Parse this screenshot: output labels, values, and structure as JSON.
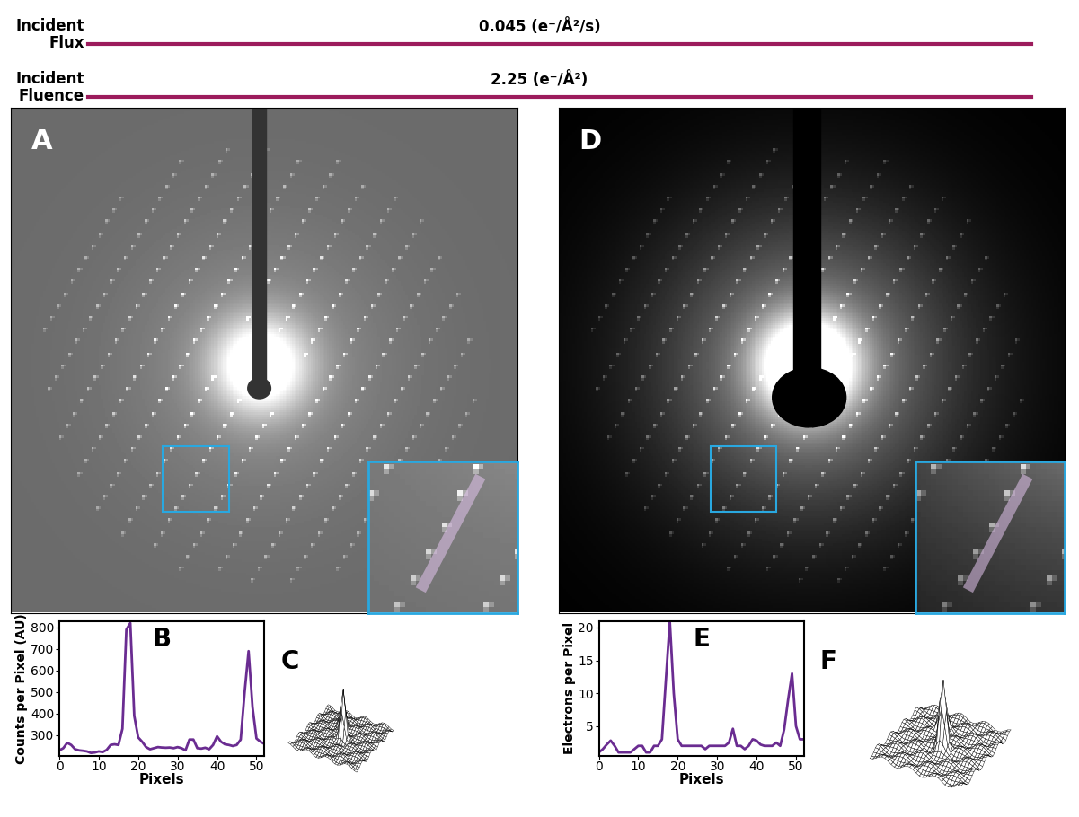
{
  "header": {
    "rows": [
      {
        "label": [
          "Incident",
          "Flux"
        ],
        "value": "0.045 (e⁻/Å²/s)"
      },
      {
        "label": [
          "Incident",
          "Fluence"
        ],
        "value": "2.25 (e⁻/Å²)"
      }
    ]
  },
  "images": [
    {
      "label": "A"
    },
    {
      "label": "D"
    }
  ],
  "surfaces": [
    {
      "label": "C"
    },
    {
      "label": "F"
    }
  ],
  "chart_data": [
    {
      "type": "line",
      "label": "B",
      "color": "#6a2c91",
      "xlabel": "Pixels",
      "ylabel": "Counts per Pixel (AU)",
      "x": [
        0,
        1,
        2,
        3,
        4,
        5,
        6,
        7,
        8,
        9,
        10,
        11,
        12,
        13,
        14,
        15,
        16,
        17,
        18,
        19,
        20,
        21,
        22,
        23,
        24,
        25,
        26,
        27,
        28,
        29,
        30,
        31,
        32,
        33,
        34,
        35,
        36,
        37,
        38,
        39,
        40,
        41,
        42,
        43,
        44,
        45,
        46,
        47,
        48,
        49,
        50,
        51,
        52
      ],
      "values": [
        230,
        240,
        265,
        255,
        235,
        230,
        228,
        225,
        218,
        220,
        225,
        222,
        232,
        255,
        258,
        255,
        330,
        790,
        820,
        390,
        290,
        270,
        245,
        235,
        240,
        245,
        243,
        242,
        243,
        240,
        245,
        240,
        230,
        280,
        280,
        240,
        238,
        242,
        235,
        255,
        295,
        270,
        258,
        255,
        250,
        255,
        280,
        500,
        690,
        430,
        285,
        270,
        260
      ],
      "xlim": [
        0,
        52
      ],
      "ylim": [
        205,
        830
      ],
      "xticks": [
        0,
        10,
        20,
        30,
        40,
        50
      ],
      "yticks": [
        300,
        400,
        500,
        600,
        700,
        800
      ]
    },
    {
      "type": "line",
      "label": "E",
      "color": "#6a2c91",
      "xlabel": "Pixels",
      "ylabel": "Electrons per Pixel",
      "x": [
        0,
        1,
        2,
        3,
        4,
        5,
        6,
        7,
        8,
        9,
        10,
        11,
        12,
        13,
        14,
        15,
        16,
        17,
        18,
        19,
        20,
        21,
        22,
        23,
        24,
        25,
        26,
        27,
        28,
        29,
        30,
        31,
        32,
        33,
        34,
        35,
        36,
        37,
        38,
        39,
        40,
        41,
        42,
        43,
        44,
        45,
        46,
        47,
        48,
        49,
        50,
        51,
        52
      ],
      "values": [
        1,
        1.5,
        2.2,
        2.8,
        2,
        1,
        1,
        1,
        1,
        1.5,
        2,
        2,
        1,
        1,
        2,
        2,
        3,
        12,
        21,
        10,
        3,
        2,
        2,
        2,
        2,
        2,
        2,
        1.5,
        2,
        2,
        2,
        2,
        2,
        2.5,
        4.6,
        2,
        2,
        1.5,
        2,
        3,
        2.8,
        2.2,
        2,
        2,
        2,
        2.5,
        2,
        4.5,
        9,
        13,
        5,
        3,
        3
      ],
      "xlim": [
        0,
        52
      ],
      "ylim": [
        0.5,
        21
      ],
      "xticks": [
        0,
        10,
        20,
        30,
        40,
        50
      ],
      "yticks": [
        5,
        10,
        15,
        20
      ]
    }
  ]
}
